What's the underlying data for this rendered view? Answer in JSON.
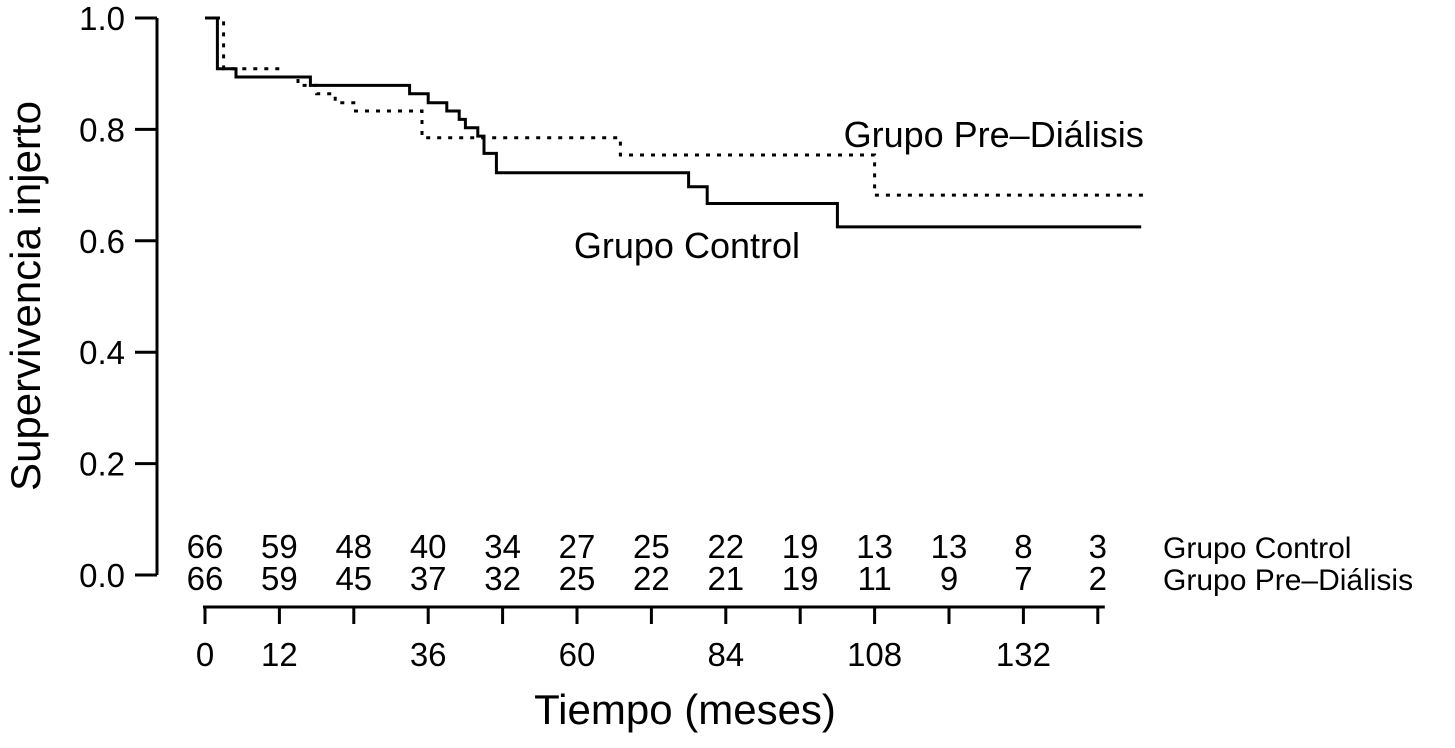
{
  "chart_data": {
    "type": "line",
    "subtype": "kaplan-meier-step",
    "title": "",
    "xlabel": "Tiempo (meses)",
    "ylabel": "Supervivencia injerto",
    "xlim": [
      0,
      156
    ],
    "ylim": [
      0.0,
      1.0
    ],
    "grid": false,
    "legend_position": "labels-in-plot",
    "colors": {
      "foreground": "#000000",
      "background": "#ffffff"
    },
    "x_ticks": [
      0,
      12,
      24,
      36,
      48,
      60,
      72,
      84,
      96,
      108,
      120,
      132,
      144
    ],
    "x_tick_labels": [
      "0",
      "12",
      "",
      "36",
      "",
      "60",
      "",
      "84",
      "",
      "108",
      "",
      "132",
      ""
    ],
    "y_ticks": [
      0.0,
      0.2,
      0.4,
      0.6,
      0.8,
      1.0
    ],
    "y_tick_labels": [
      "0.0",
      "0.2",
      "0.4",
      "0.6",
      "0.8",
      "1.0"
    ],
    "series": [
      {
        "name": "Grupo Control",
        "style": "solid",
        "color": "#000000",
        "points": [
          [
            0,
            1.0
          ],
          [
            2,
            0.909
          ],
          [
            5,
            0.894
          ],
          [
            17,
            0.879
          ],
          [
            33,
            0.864
          ],
          [
            36,
            0.848
          ],
          [
            39,
            0.833
          ],
          [
            41,
            0.818
          ],
          [
            42,
            0.803
          ],
          [
            44,
            0.788
          ],
          [
            45,
            0.757
          ],
          [
            47,
            0.722
          ],
          [
            78,
            0.697
          ],
          [
            81,
            0.667
          ],
          [
            102,
            0.625
          ],
          [
            151,
            0.625
          ]
        ]
      },
      {
        "name": "Grupo Pre–Diálisis",
        "style": "dotted",
        "color": "#000000",
        "points": [
          [
            0,
            1.0
          ],
          [
            3,
            0.909
          ],
          [
            12,
            0.894
          ],
          [
            15,
            0.879
          ],
          [
            18,
            0.864
          ],
          [
            21,
            0.848
          ],
          [
            24,
            0.833
          ],
          [
            35,
            0.785
          ],
          [
            67,
            0.754
          ],
          [
            108,
            0.682
          ],
          [
            152,
            0.682
          ]
        ]
      }
    ],
    "annotations": [
      {
        "text": "Grupo Pre–Diálisis",
        "x": 103,
        "y": 0.768,
        "anchor": "start"
      },
      {
        "text": "Grupo Control",
        "x": 59.5,
        "y": 0.569,
        "anchor": "start"
      }
    ],
    "risk_table": {
      "times": [
        0,
        12,
        24,
        36,
        48,
        60,
        72,
        84,
        96,
        108,
        120,
        132,
        144
      ],
      "rows": [
        {
          "label": "Grupo Control",
          "counts": [
            66,
            59,
            48,
            40,
            34,
            27,
            25,
            22,
            19,
            13,
            13,
            8,
            3
          ]
        },
        {
          "label": "Grupo Pre–Diálisis",
          "counts": [
            66,
            59,
            45,
            37,
            32,
            25,
            22,
            21,
            19,
            11,
            9,
            7,
            2
          ]
        }
      ]
    }
  }
}
